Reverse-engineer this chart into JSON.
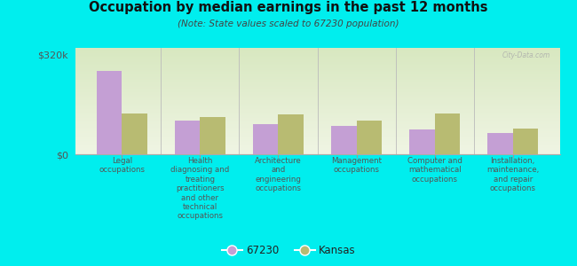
{
  "title": "Occupation by median earnings in the past 12 months",
  "subtitle": "(Note: State values scaled to 67230 population)",
  "background_color": "#00EEEE",
  "categories": [
    "Legal\noccupations",
    "Health\ndiagnosing and\ntreating\npractitioners\nand other\ntechnical\noccupations",
    "Architecture\nand\nengineering\noccupations",
    "Management\noccupations",
    "Computer and\nmathematical\noccupations",
    "Installation,\nmaintenance,\nand repair\noccupations"
  ],
  "values_67230": [
    265000,
    108000,
    95000,
    90000,
    78000,
    68000
  ],
  "values_kansas": [
    130000,
    118000,
    128000,
    108000,
    130000,
    82000
  ],
  "color_67230": "#c49fd4",
  "color_kansas": "#b8bb72",
  "ylim": [
    0,
    340000
  ],
  "yticks": [
    0,
    320000
  ],
  "ytick_labels": [
    "$0",
    "$320k"
  ],
  "bar_width": 0.32,
  "legend_67230": "67230",
  "legend_kansas": "Kansas",
  "watermark": "City-Data.com"
}
